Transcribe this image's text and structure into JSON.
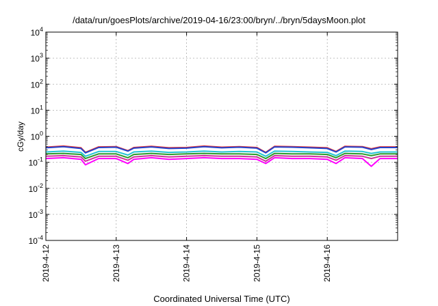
{
  "title": "/data/run/goesPlots/archive/2019-04-16/23:00/bryn/../bryn/5daysMoon.plot",
  "chart_data": {
    "type": "line",
    "title": "/data/run/goesPlots/archive/2019-04-16/23:00/bryn/../bryn/5daysMoon.plot",
    "xlabel": "Coordinated Universal Time (UTC)",
    "ylabel": "cGy/day",
    "y_scale": "log",
    "ylim": [
      0.0001,
      10000
    ],
    "y_ticks": [
      {
        "value": 0.0001,
        "base": "10",
        "exp": "-4"
      },
      {
        "value": 0.001,
        "base": "10",
        "exp": "-3"
      },
      {
        "value": 0.01,
        "base": "10",
        "exp": "-2"
      },
      {
        "value": 0.1,
        "base": "10",
        "exp": "-1"
      },
      {
        "value": 1,
        "base": "10",
        "exp": "0"
      },
      {
        "value": 10,
        "base": "10",
        "exp": "1"
      },
      {
        "value": 100,
        "base": "10",
        "exp": "2"
      },
      {
        "value": 1000,
        "base": "10",
        "exp": "3"
      },
      {
        "value": 10000,
        "base": "10",
        "exp": "4"
      }
    ],
    "xlim": [
      "2019-04-12 00:00",
      "2019-04-17 00:00"
    ],
    "x_ticks": [
      "2019-4-12",
      "2019-4-13",
      "2019-4-14",
      "2019-4-15",
      "2019-4-16"
    ],
    "x_tick_dates": [
      "2019-04-12 00:00",
      "2019-04-13 00:00",
      "2019-04-14 00:00",
      "2019-04-15 00:00",
      "2019-04-16 00:00"
    ],
    "grid": true,
    "x": [
      "2019-04-12 00:00",
      "2019-04-12 06:00",
      "2019-04-12 12:00",
      "2019-04-12 13:30",
      "2019-04-12 18:00",
      "2019-04-13 00:00",
      "2019-04-13 04:00",
      "2019-04-13 06:00",
      "2019-04-13 12:00",
      "2019-04-13 18:00",
      "2019-04-14 00:00",
      "2019-04-14 06:00",
      "2019-04-14 12:00",
      "2019-04-14 18:00",
      "2019-04-15 00:00",
      "2019-04-15 03:00",
      "2019-04-15 06:00",
      "2019-04-15 12:00",
      "2019-04-15 18:00",
      "2019-04-16 00:00",
      "2019-04-16 03:00",
      "2019-04-16 06:00",
      "2019-04-16 12:00",
      "2019-04-16 15:00",
      "2019-04-16 18:00",
      "2019-04-17 00:00"
    ],
    "series": [
      {
        "color": "#e8282a",
        "values": [
          0.38,
          0.42,
          0.36,
          0.24,
          0.39,
          0.4,
          0.28,
          0.37,
          0.41,
          0.36,
          0.37,
          0.42,
          0.38,
          0.4,
          0.37,
          0.24,
          0.41,
          0.4,
          0.38,
          0.36,
          0.26,
          0.41,
          0.4,
          0.33,
          0.39,
          0.39
        ]
      },
      {
        "color": "#2244cc",
        "values": [
          0.36,
          0.4,
          0.34,
          0.23,
          0.37,
          0.38,
          0.27,
          0.35,
          0.39,
          0.34,
          0.35,
          0.4,
          0.36,
          0.38,
          0.35,
          0.23,
          0.39,
          0.38,
          0.36,
          0.34,
          0.25,
          0.39,
          0.38,
          0.31,
          0.37,
          0.37
        ]
      },
      {
        "color": "#22c4d4",
        "values": [
          0.25,
          0.27,
          0.24,
          0.17,
          0.26,
          0.26,
          0.19,
          0.25,
          0.27,
          0.24,
          0.25,
          0.27,
          0.25,
          0.26,
          0.25,
          0.17,
          0.27,
          0.26,
          0.25,
          0.24,
          0.18,
          0.27,
          0.26,
          0.22,
          0.25,
          0.25
        ]
      },
      {
        "color": "#2a9a2a",
        "values": [
          0.21,
          0.22,
          0.2,
          0.14,
          0.21,
          0.21,
          0.15,
          0.2,
          0.22,
          0.2,
          0.21,
          0.22,
          0.21,
          0.21,
          0.2,
          0.14,
          0.22,
          0.21,
          0.21,
          0.2,
          0.15,
          0.22,
          0.21,
          0.18,
          0.21,
          0.21
        ]
      },
      {
        "color": "#cc3399",
        "values": [
          0.17,
          0.18,
          0.16,
          0.11,
          0.17,
          0.17,
          0.12,
          0.16,
          0.18,
          0.16,
          0.17,
          0.18,
          0.17,
          0.17,
          0.16,
          0.11,
          0.18,
          0.17,
          0.17,
          0.16,
          0.12,
          0.18,
          0.17,
          0.14,
          0.17,
          0.17
        ]
      },
      {
        "color": "#ff00ff",
        "values": [
          0.14,
          0.15,
          0.13,
          0.08,
          0.14,
          0.14,
          0.09,
          0.13,
          0.15,
          0.13,
          0.14,
          0.15,
          0.14,
          0.14,
          0.13,
          0.09,
          0.15,
          0.14,
          0.14,
          0.13,
          0.09,
          0.15,
          0.14,
          0.07,
          0.14,
          0.14
        ]
      }
    ]
  }
}
